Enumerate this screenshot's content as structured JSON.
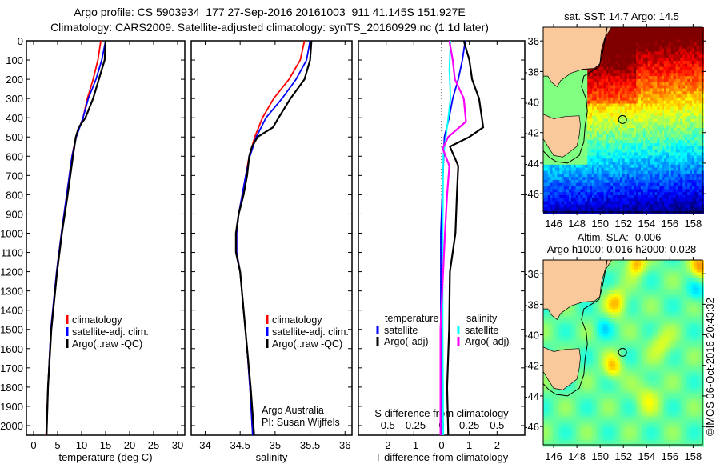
{
  "title": {
    "line1": "Argo profile: CS 5903934_177 27-Sep-2016 20161003_911 41.145S 151.927E",
    "line2": "Climatology: CARS2009. Satellite-adjusted climatology: synTS_20160929.nc (1.1d later)"
  },
  "colors": {
    "climatology": "#ff0000",
    "satellite": "#0000ff",
    "argo": "#000000",
    "sal_satellite": "#00ffff",
    "sal_argo": "#ff00ff",
    "land": "#f9c89b"
  },
  "chart_data": [
    {
      "type": "line",
      "title": "",
      "xlabel": "temperature (deg C)",
      "ylabel": "",
      "xlim": [
        -1.5,
        31.5
      ],
      "ylim": [
        2050,
        0
      ],
      "xticks": [
        "0",
        "5",
        "10",
        "15",
        "20",
        "25",
        "30"
      ],
      "xtick_values": [
        0,
        5,
        10,
        15,
        20,
        25,
        30
      ],
      "yticks": [
        "0",
        "100",
        "200",
        "300",
        "400",
        "500",
        "600",
        "700",
        "800",
        "900",
        "1000",
        "1100",
        "1200",
        "1300",
        "1400",
        "1500",
        "1600",
        "1700",
        "1800",
        "1900",
        "2000"
      ],
      "legend": [
        "climatology",
        "satellite-adj. clim.",
        "Argo(..raw -QC)"
      ],
      "legend_placement": "lower-left",
      "series": [
        {
          "name": "climatology",
          "depth": [
            0,
            100,
            200,
            300,
            400,
            500,
            600,
            800,
            1000,
            1200,
            1500,
            1800,
            2050
          ],
          "values": [
            14.0,
            13.4,
            12.4,
            11.2,
            10.3,
            8.8,
            8.0,
            6.9,
            5.8,
            4.8,
            3.6,
            3.0,
            2.6
          ]
        },
        {
          "name": "satellite-adj. clim.",
          "depth": [
            0,
            100,
            200,
            300,
            400,
            500,
            600,
            800,
            1000,
            1200,
            1500,
            1800,
            2050
          ],
          "values": [
            15.0,
            14.2,
            13.0,
            11.4,
            10.3,
            8.9,
            8.0,
            6.9,
            5.8,
            4.8,
            3.6,
            3.0,
            2.7
          ]
        },
        {
          "name": "Argo(..raw -QC)",
          "depth": [
            0,
            100,
            200,
            300,
            400,
            450,
            500,
            600,
            800,
            1000,
            1200,
            1500,
            1800,
            2050
          ],
          "values": [
            15.0,
            14.8,
            13.6,
            12.4,
            10.8,
            9.4,
            8.8,
            8.2,
            7.1,
            5.9,
            4.9,
            3.7,
            3.0,
            2.7
          ]
        }
      ]
    },
    {
      "type": "line",
      "xlabel": "salinity",
      "xlim": [
        33.8,
        36.1
      ],
      "ylim": [
        2050,
        0
      ],
      "xticks": [
        "34",
        "34.5",
        "35",
        "35.5",
        "36"
      ],
      "xtick_values": [
        34,
        34.5,
        35,
        35.5,
        36
      ],
      "legend": [
        "climatology",
        "satellite-adj. clim.",
        "Argo(..raw -QC)"
      ],
      "legend_placement": "lower-right",
      "annotations": [
        "Argo Australia",
        "PI: Susan Wijffels"
      ],
      "series": [
        {
          "name": "climatology",
          "depth": [
            0,
            100,
            200,
            300,
            400,
            500,
            600,
            700,
            800,
            900,
            1000,
            1100,
            1200,
            1400,
            1600,
            1800,
            2050
          ],
          "values": [
            35.42,
            35.36,
            35.2,
            34.98,
            34.82,
            34.71,
            34.63,
            34.58,
            34.53,
            34.48,
            34.45,
            34.45,
            34.5,
            34.55,
            34.6,
            34.64,
            34.68
          ]
        },
        {
          "name": "satellite-adj. clim.",
          "depth": [
            0,
            100,
            200,
            300,
            400,
            500,
            600,
            700,
            800,
            900,
            1000,
            1100,
            1200,
            1400,
            1600,
            1800,
            2050
          ],
          "values": [
            35.5,
            35.45,
            35.3,
            35.1,
            34.87,
            34.73,
            34.64,
            34.58,
            34.53,
            34.48,
            34.45,
            34.45,
            34.5,
            34.55,
            34.6,
            34.64,
            34.68
          ]
        },
        {
          "name": "Argo(..raw -QC)",
          "depth": [
            0,
            100,
            200,
            300,
            400,
            450,
            500,
            550,
            600,
            700,
            800,
            900,
            1000,
            1100,
            1200,
            1400,
            1600,
            1800,
            2050
          ],
          "values": [
            35.52,
            35.5,
            35.42,
            35.22,
            35.05,
            34.97,
            34.75,
            34.67,
            34.63,
            34.6,
            34.55,
            34.48,
            34.44,
            34.44,
            34.5,
            34.55,
            34.6,
            34.65,
            34.7
          ]
        }
      ]
    },
    {
      "type": "line",
      "xlabel": "T difference from climatology",
      "x2label": "S difference from climatology",
      "xlim": [
        -3,
        3
      ],
      "x2lim": [
        -0.75,
        0.75
      ],
      "ylim": [
        2050,
        0
      ],
      "xticks": [
        "-2",
        "-1",
        "0",
        "1",
        "2"
      ],
      "xtick_values": [
        -2,
        -1,
        0,
        1,
        2
      ],
      "x2ticks": [
        "-0.5",
        "-0.25",
        "0",
        "0.25",
        "0.5"
      ],
      "x2tick_values": [
        -0.5,
        -0.25,
        0,
        0.25,
        0.5
      ],
      "legend_temperature": {
        "title": "temperature",
        "items": [
          "satellite",
          "Argo(-adj)"
        ]
      },
      "legend_salinity": {
        "title": "salinity",
        "items": [
          "satellite",
          "Argo(-adj)"
        ]
      },
      "legend_placement": "lower-center",
      "series": [
        {
          "name": "temperature satellite",
          "axis": "T",
          "depth": [
            0,
            100,
            200,
            300,
            400,
            500,
            700,
            1000,
            1500,
            2050
          ],
          "values": [
            0.85,
            0.75,
            0.6,
            0.4,
            0.27,
            0.1,
            0.05,
            -0.03,
            -0.03,
            0.0
          ]
        },
        {
          "name": "temperature Argo(-adj)",
          "axis": "T",
          "depth": [
            0,
            100,
            200,
            300,
            400,
            450,
            500,
            550,
            650,
            800,
            1000,
            1200,
            1500,
            1800,
            2050
          ],
          "values": [
            0.8,
            1.0,
            1.1,
            1.35,
            1.45,
            1.5,
            1.0,
            0.3,
            0.6,
            0.55,
            0.5,
            0.3,
            0.27,
            0.2,
            0.24
          ]
        },
        {
          "name": "salinity satellite",
          "axis": "S",
          "depth": [
            0,
            150,
            300,
            450,
            600,
            1000,
            1500,
            2050
          ],
          "values": [
            0.08,
            0.07,
            0.08,
            0.05,
            0.015,
            0.01,
            0.01,
            0.015
          ]
        },
        {
          "name": "salinity Argo(-adj)",
          "axis": "S",
          "depth": [
            0,
            100,
            200,
            300,
            420,
            500,
            560,
            650,
            800,
            1000,
            1500,
            2050
          ],
          "values": [
            0.07,
            0.1,
            0.12,
            0.2,
            0.22,
            0.06,
            0.01,
            0.07,
            0.05,
            0.03,
            -0.01,
            -0.01
          ]
        }
      ]
    }
  ],
  "maps": {
    "sst": {
      "title": "sat. SST: 14.7 Argo: 14.5"
    },
    "sla": {
      "title1": "Altim. SLA: -0.006",
      "title2": "Argo h1000: 0.016 h2000: 0.028"
    },
    "lon_ticks": [
      "146",
      "148",
      "150",
      "152",
      "154",
      "156",
      "158"
    ],
    "lon_values": [
      146,
      148,
      150,
      152,
      154,
      156,
      158
    ],
    "lat_ticks": [
      "-36",
      "-38",
      "-40",
      "-42",
      "-44",
      "-46"
    ],
    "lat_values": [
      -36,
      -38,
      -40,
      -42,
      -44,
      -46
    ],
    "argo_position": {
      "lon": 151.927,
      "lat": -41.145
    }
  },
  "credit": "©IMOS 06-Oct-2016 20:43:32"
}
